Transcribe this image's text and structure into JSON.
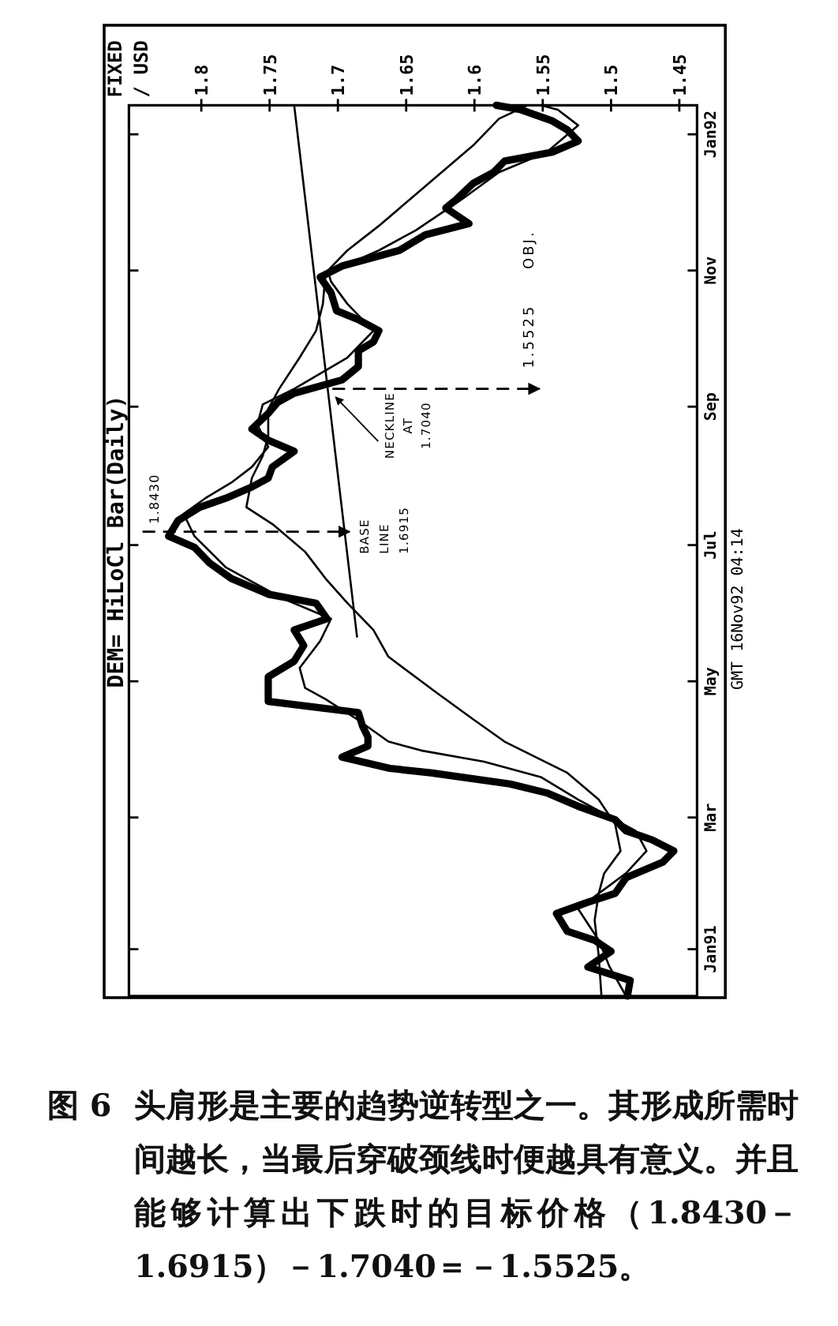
{
  "chart_data": {
    "type": "line",
    "orientation": "horizontal",
    "title": "DEM= HiLoCl Bar(Daily)",
    "ylabel": "FIXED\n/ USD",
    "xlim": [
      1.853,
      1.437
    ],
    "xticks": [
      1.8,
      1.75,
      1.7,
      1.65,
      1.6,
      1.55,
      1.5,
      1.45
    ],
    "ylim": [
      "1990-12-11",
      "1992-01-14"
    ],
    "yticks": [
      {
        "value": "1991-01-01",
        "label": "Jan91"
      },
      {
        "value": "1991-03-01",
        "label": "Mar"
      },
      {
        "value": "1991-05-01",
        "label": "May"
      },
      {
        "value": "1991-07-01",
        "label": "Jul"
      },
      {
        "value": "1991-09-01",
        "label": "Sep"
      },
      {
        "value": "1991-11-01",
        "label": "Nov"
      },
      {
        "value": "1992-01-01",
        "label": "Jan92"
      }
    ],
    "series": [
      {
        "color": "#000000",
        "x": [
          "1990-12-11",
          "1990-12-18",
          "1990-12-24",
          "1990-12-31",
          "1991-01-05",
          "1991-01-09",
          "1991-01-17",
          "1991-01-22",
          "1991-01-26",
          "1991-02-02",
          "1991-02-09",
          "1991-02-14",
          "1991-02-19",
          "1991-02-23",
          "1991-02-28",
          "1991-03-06",
          "1991-03-12",
          "1991-03-16",
          "1991-03-21",
          "1991-03-23",
          "1991-03-28",
          "1991-04-02",
          "1991-04-06",
          "1991-04-11",
          "1991-04-17",
          "1991-04-22",
          "1991-05-03",
          "1991-05-10",
          "1991-05-17",
          "1991-05-24",
          "1991-05-29",
          "1991-06-05",
          "1991-06-09",
          "1991-06-16",
          "1991-06-23",
          "1991-06-30",
          "1991-07-05",
          "1991-07-12",
          "1991-07-18",
          "1991-07-22",
          "1991-07-27",
          "1991-07-31",
          "1991-08-05",
          "1991-08-12",
          "1991-08-17",
          "1991-08-22",
          "1991-08-29",
          "1991-09-03",
          "1991-09-07",
          "1991-09-13",
          "1991-09-19",
          "1991-09-26",
          "1991-09-30",
          "1991-10-05",
          "1991-10-10",
          "1991-10-14",
          "1991-10-22",
          "1991-10-29",
          "1991-11-03",
          "1991-11-10",
          "1991-11-17",
          "1991-11-22",
          "1991-11-29",
          "1991-12-03",
          "1991-12-10",
          "1991-12-15",
          "1991-12-20",
          "1991-12-24",
          "1991-12-29",
          "1992-01-03",
          "1992-01-07",
          "1992-01-12",
          "1992-01-14"
        ],
        "values": [
          1.488,
          1.486,
          1.517,
          1.5,
          1.512,
          1.532,
          1.54,
          1.517,
          1.497,
          1.489,
          1.462,
          1.454,
          1.47,
          1.489,
          1.497,
          1.524,
          1.547,
          1.574,
          1.632,
          1.662,
          1.697,
          1.678,
          1.678,
          1.682,
          1.685,
          1.751,
          1.751,
          1.732,
          1.725,
          1.732,
          1.708,
          1.716,
          1.751,
          1.778,
          1.794,
          1.805,
          1.824,
          1.817,
          1.801,
          1.782,
          1.763,
          1.751,
          1.748,
          1.732,
          1.751,
          1.763,
          1.751,
          1.744,
          1.732,
          1.697,
          1.685,
          1.685,
          1.674,
          1.67,
          1.685,
          1.701,
          1.705,
          1.713,
          1.697,
          1.655,
          1.636,
          1.604,
          1.621,
          1.613,
          1.601,
          1.586,
          1.578,
          1.543,
          1.524,
          1.532,
          1.543,
          1.566,
          1.584
        ]
      },
      {
        "color": "#000000",
        "x": [
          "1990-12-11",
          "1990-12-24",
          "1991-01-05",
          "1991-01-19",
          "1991-01-26",
          "1991-02-04",
          "1991-02-14",
          "1991-02-23",
          "1991-02-28",
          "1991-03-09",
          "1991-03-19",
          "1991-03-26",
          "1991-03-31",
          "1991-04-04",
          "1991-04-14",
          "1991-04-23",
          "1991-04-28",
          "1991-05-07",
          "1991-05-19",
          "1991-05-29",
          "1991-06-07",
          "1991-06-21",
          "1991-07-05",
          "1991-07-15",
          "1991-07-22",
          "1991-07-29",
          "1991-08-05",
          "1991-08-14",
          "1991-08-24",
          "1991-09-02",
          "1991-09-09",
          "1991-09-23",
          "1991-10-05",
          "1991-10-17",
          "1991-10-27",
          "1991-10-31",
          "1991-11-10",
          "1991-11-19",
          "1991-12-03",
          "1991-12-15",
          "1991-12-24",
          "1992-01-05",
          "1992-01-12",
          "1992-01-14"
        ],
        "values": [
          1.489,
          1.501,
          1.509,
          1.524,
          1.509,
          1.489,
          1.474,
          1.482,
          1.497,
          1.524,
          1.551,
          1.593,
          1.639,
          1.663,
          1.686,
          1.709,
          1.724,
          1.728,
          1.713,
          1.705,
          1.74,
          1.782,
          1.805,
          1.813,
          1.797,
          1.778,
          1.763,
          1.751,
          1.759,
          1.755,
          1.732,
          1.693,
          1.674,
          1.693,
          1.705,
          1.707,
          1.67,
          1.643,
          1.609,
          1.582,
          1.547,
          1.524,
          1.539,
          1.551
        ]
      },
      {
        "color": "#000000",
        "x": [
          "1990-12-11",
          "1990-12-29",
          "1991-01-14",
          "1991-01-26",
          "1991-02-04",
          "1991-02-14",
          "1991-02-26",
          "1991-03-09",
          "1991-03-21",
          "1991-03-28",
          "1991-04-04",
          "1991-04-14",
          "1991-04-26",
          "1991-05-12",
          "1991-05-24",
          "1991-06-05",
          "1991-06-16",
          "1991-06-28",
          "1991-07-10",
          "1991-07-18",
          "1991-07-31",
          "1991-08-10",
          "1991-08-19",
          "1991-08-31",
          "1991-09-09",
          "1991-09-23",
          "1991-10-05",
          "1991-10-17",
          "1991-10-31",
          "1991-11-10",
          "1991-11-21",
          "1991-12-03",
          "1991-12-15",
          "1991-12-27",
          "1992-01-08",
          "1992-01-14"
        ],
        "values": [
          1.507,
          1.509,
          1.512,
          1.509,
          1.505,
          1.493,
          1.497,
          1.509,
          1.532,
          1.555,
          1.578,
          1.601,
          1.628,
          1.663,
          1.674,
          1.693,
          1.709,
          1.724,
          1.747,
          1.767,
          1.763,
          1.755,
          1.751,
          1.751,
          1.743,
          1.728,
          1.716,
          1.711,
          1.709,
          1.693,
          1.67,
          1.647,
          1.624,
          1.601,
          1.582,
          1.561
        ]
      },
      {
        "color": "#000000",
        "x": [
          "1991-05-21",
          "1992-01-14"
        ],
        "values": [
          1.686,
          1.732
        ]
      },
      {
        "color": "#000000",
        "line_style": "dashed",
        "x": [
          "1991-07-07",
          "1991-07-07"
        ],
        "values": [
          1.843,
          1.6915
        ]
      },
      {
        "color": "#000000",
        "line_style": "dashed",
        "x": [
          "1991-09-09",
          "1991-09-09"
        ],
        "values": [
          1.704,
          1.5525
        ]
      }
    ],
    "annotations": [
      {
        "text": "1.8430",
        "x": 1.843,
        "y": "1991-07-07"
      },
      {
        "text": "BASE\nLINE\n1.6915",
        "x": 1.6915,
        "y": "1991-07-07"
      },
      {
        "text": "NECKLINE\nAT\n1.7040",
        "x": 1.704,
        "y": "1991-09-06"
      },
      {
        "text": "1.5525 OBJ.",
        "x": 1.5525,
        "y": "1991-09-09"
      },
      "GMT 16Nov92 04:14",
      "图 6",
      "头肩形是主要的趋势逆转型之一。其形成所需时间越长，当最后穿破颈线时便越具有意义。并且能够计算出下跌时的目标价格（1.8430－1.6915）－1.7040＝－1.5525。"
    ]
  }
}
